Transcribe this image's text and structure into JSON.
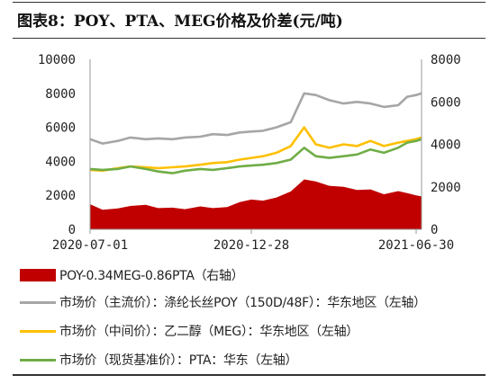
{
  "header": {
    "title": "图表8：POY、PTA、MEG价格及价差(元/吨)"
  },
  "chart_data": {
    "type": "line",
    "title": "",
    "x_ticks": [
      "2020-07-01",
      "2020-12-28",
      "2021-06-30"
    ],
    "x_range": [
      "2020-07-01",
      "2021-07-06"
    ],
    "y_left": {
      "min": 0,
      "max": 10000,
      "ticks": [
        0,
        2000,
        4000,
        6000,
        8000,
        10000
      ]
    },
    "y_right": {
      "min": 0,
      "max": 8000,
      "ticks": [
        0,
        2000,
        4000,
        6000,
        8000
      ]
    },
    "grid": false,
    "legend_position": "bottom",
    "series": [
      {
        "name": "POY-0.34MEG-0.86PTA（右轴）",
        "type": "area",
        "axis": "right",
        "color": "#c00000",
        "points": [
          [
            "2020-07-01",
            1180
          ],
          [
            "2020-07-15",
            920
          ],
          [
            "2020-08-01",
            980
          ],
          [
            "2020-08-15",
            1100
          ],
          [
            "2020-09-01",
            1150
          ],
          [
            "2020-09-15",
            1000
          ],
          [
            "2020-10-01",
            1020
          ],
          [
            "2020-10-15",
            950
          ],
          [
            "2020-11-01",
            1080
          ],
          [
            "2020-11-15",
            1000
          ],
          [
            "2020-12-01",
            1050
          ],
          [
            "2020-12-15",
            1280
          ],
          [
            "2020-12-28",
            1400
          ],
          [
            "2021-01-10",
            1350
          ],
          [
            "2021-01-25",
            1500
          ],
          [
            "2021-02-10",
            1780
          ],
          [
            "2021-02-25",
            2350
          ],
          [
            "2021-03-10",
            2250
          ],
          [
            "2021-03-25",
            2050
          ],
          [
            "2021-04-10",
            2000
          ],
          [
            "2021-04-25",
            1850
          ],
          [
            "2021-05-10",
            1880
          ],
          [
            "2021-05-25",
            1650
          ],
          [
            "2021-06-10",
            1800
          ],
          [
            "2021-06-20",
            1700
          ],
          [
            "2021-06-30",
            1600
          ],
          [
            "2021-07-06",
            1550
          ]
        ]
      },
      {
        "name": "市场价（主流价）：涤纶长丝POY（150D/48F）：华东地区（左轴）",
        "type": "line",
        "axis": "left",
        "color": "#a6a6a6",
        "points": [
          [
            "2020-07-01",
            5300
          ],
          [
            "2020-07-15",
            5050
          ],
          [
            "2020-08-01",
            5200
          ],
          [
            "2020-08-15",
            5400
          ],
          [
            "2020-09-01",
            5300
          ],
          [
            "2020-09-15",
            5350
          ],
          [
            "2020-10-01",
            5300
          ],
          [
            "2020-10-15",
            5400
          ],
          [
            "2020-11-01",
            5450
          ],
          [
            "2020-11-15",
            5600
          ],
          [
            "2020-12-01",
            5550
          ],
          [
            "2020-12-15",
            5700
          ],
          [
            "2020-12-28",
            5750
          ],
          [
            "2021-01-10",
            5800
          ],
          [
            "2021-01-25",
            6000
          ],
          [
            "2021-02-10",
            6300
          ],
          [
            "2021-02-25",
            8000
          ],
          [
            "2021-03-10",
            7900
          ],
          [
            "2021-03-25",
            7600
          ],
          [
            "2021-04-10",
            7400
          ],
          [
            "2021-04-25",
            7500
          ],
          [
            "2021-05-10",
            7400
          ],
          [
            "2021-05-25",
            7200
          ],
          [
            "2021-06-10",
            7300
          ],
          [
            "2021-06-20",
            7800
          ],
          [
            "2021-06-30",
            7900
          ],
          [
            "2021-07-06",
            8000
          ]
        ]
      },
      {
        "name": "市场价（中间价）：乙二醇（MEG）：华东地区（左轴）",
        "type": "line",
        "axis": "left",
        "color": "#ffc000",
        "points": [
          [
            "2020-07-01",
            3500
          ],
          [
            "2020-07-15",
            3450
          ],
          [
            "2020-08-01",
            3600
          ],
          [
            "2020-08-15",
            3700
          ],
          [
            "2020-09-01",
            3650
          ],
          [
            "2020-09-15",
            3600
          ],
          [
            "2020-10-01",
            3650
          ],
          [
            "2020-10-15",
            3700
          ],
          [
            "2020-11-01",
            3800
          ],
          [
            "2020-11-15",
            3900
          ],
          [
            "2020-12-01",
            3950
          ],
          [
            "2020-12-15",
            4100
          ],
          [
            "2020-12-28",
            4200
          ],
          [
            "2021-01-10",
            4300
          ],
          [
            "2021-01-25",
            4500
          ],
          [
            "2021-02-10",
            4900
          ],
          [
            "2021-02-25",
            6000
          ],
          [
            "2021-03-10",
            5000
          ],
          [
            "2021-03-25",
            4800
          ],
          [
            "2021-04-10",
            5000
          ],
          [
            "2021-04-25",
            4900
          ],
          [
            "2021-05-10",
            5200
          ],
          [
            "2021-05-25",
            4900
          ],
          [
            "2021-06-10",
            5100
          ],
          [
            "2021-06-20",
            5200
          ],
          [
            "2021-06-30",
            5300
          ],
          [
            "2021-07-06",
            5400
          ]
        ]
      },
      {
        "name": "市场价（现货基准价）：PTA：华东（左轴）",
        "type": "line",
        "axis": "left",
        "color": "#70ad47",
        "points": [
          [
            "2020-07-01",
            3550
          ],
          [
            "2020-07-15",
            3500
          ],
          [
            "2020-08-01",
            3550
          ],
          [
            "2020-08-15",
            3700
          ],
          [
            "2020-09-01",
            3550
          ],
          [
            "2020-09-15",
            3400
          ],
          [
            "2020-10-01",
            3300
          ],
          [
            "2020-10-15",
            3450
          ],
          [
            "2020-11-01",
            3550
          ],
          [
            "2020-11-15",
            3500
          ],
          [
            "2020-12-01",
            3600
          ],
          [
            "2020-12-15",
            3700
          ],
          [
            "2020-12-28",
            3750
          ],
          [
            "2021-01-10",
            3800
          ],
          [
            "2021-01-25",
            3900
          ],
          [
            "2021-02-10",
            4100
          ],
          [
            "2021-02-25",
            4800
          ],
          [
            "2021-03-10",
            4300
          ],
          [
            "2021-03-25",
            4200
          ],
          [
            "2021-04-10",
            4300
          ],
          [
            "2021-04-25",
            4400
          ],
          [
            "2021-05-10",
            4700
          ],
          [
            "2021-05-25",
            4500
          ],
          [
            "2021-06-10",
            4800
          ],
          [
            "2021-06-20",
            5100
          ],
          [
            "2021-06-30",
            5200
          ],
          [
            "2021-07-06",
            5300
          ]
        ]
      }
    ]
  }
}
